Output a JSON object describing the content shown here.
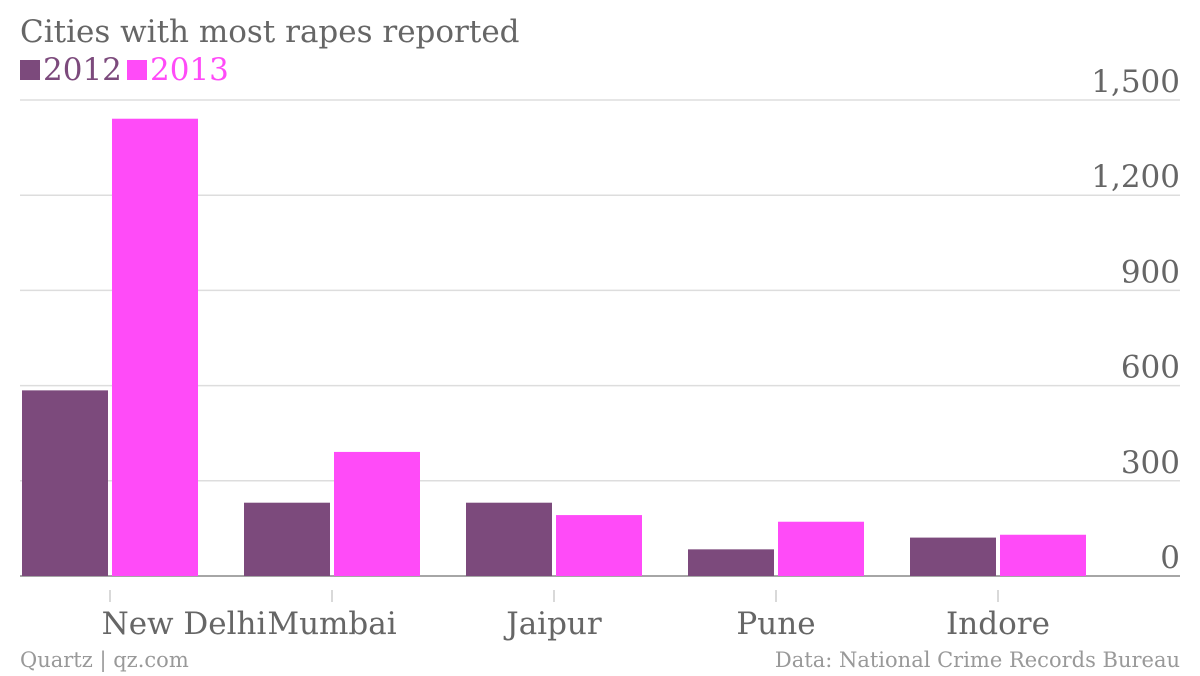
{
  "chart_data": {
    "type": "bar",
    "title": "Cities with most rapes reported",
    "categories": [
      "New Delhi",
      "Mumbai",
      "Jaipur",
      "Pune",
      "Indore"
    ],
    "series": [
      {
        "name": "2012",
        "color": "#7c4a7c",
        "values": [
          585,
          231,
          231,
          84,
          121
        ]
      },
      {
        "name": "2013",
        "color": "#ff4bf8",
        "values": [
          1441,
          391,
          192,
          171,
          130
        ]
      }
    ],
    "yticks": [
      "1,500",
      "1,200",
      "900",
      "600",
      "300",
      "0"
    ],
    "ylim": [
      0,
      1500
    ],
    "grid": true,
    "legend_position": "top-left",
    "yaxis_position": "right"
  },
  "footer": {
    "credit": "Quartz | qz.com",
    "source": "Data: National Crime Records Bureau"
  }
}
